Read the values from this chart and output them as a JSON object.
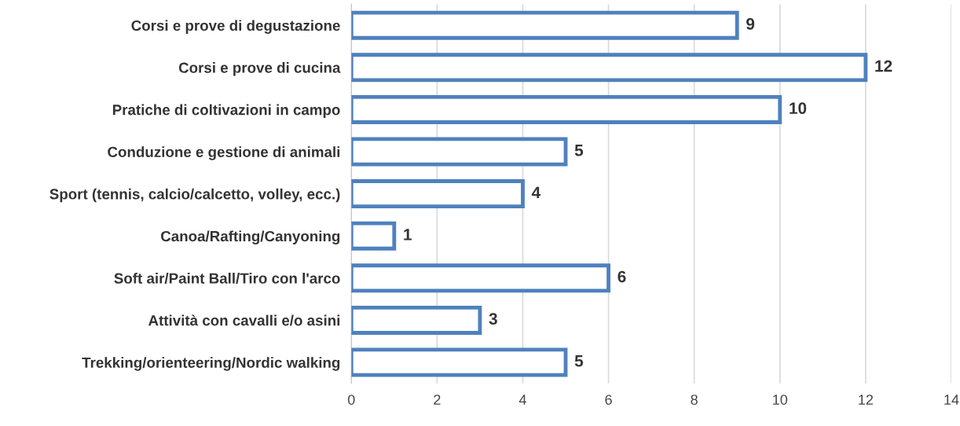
{
  "chart_data": {
    "type": "bar",
    "orientation": "horizontal",
    "categories": [
      "Corsi e prove di degustazione",
      "Corsi e prove di cucina",
      "Pratiche di coltivazioni in campo",
      "Conduzione e gestione di animali",
      "Sport (tennis, calcio/calcetto, volley, ecc.)",
      "Canoa/Rafting/Canyoning",
      "Soft air/Paint Ball/Tiro con l'arco",
      "Attività con cavalli e/o asini",
      "Trekking/orienteering/Nordic walking"
    ],
    "values": [
      9,
      12,
      10,
      5,
      4,
      1,
      6,
      3,
      5
    ],
    "color": "#4f81bd",
    "xlim": [
      0,
      14
    ],
    "xticks": [
      0,
      2,
      4,
      6,
      8,
      10,
      12,
      14
    ],
    "grid": "x",
    "legend": false,
    "data_labels": true
  }
}
